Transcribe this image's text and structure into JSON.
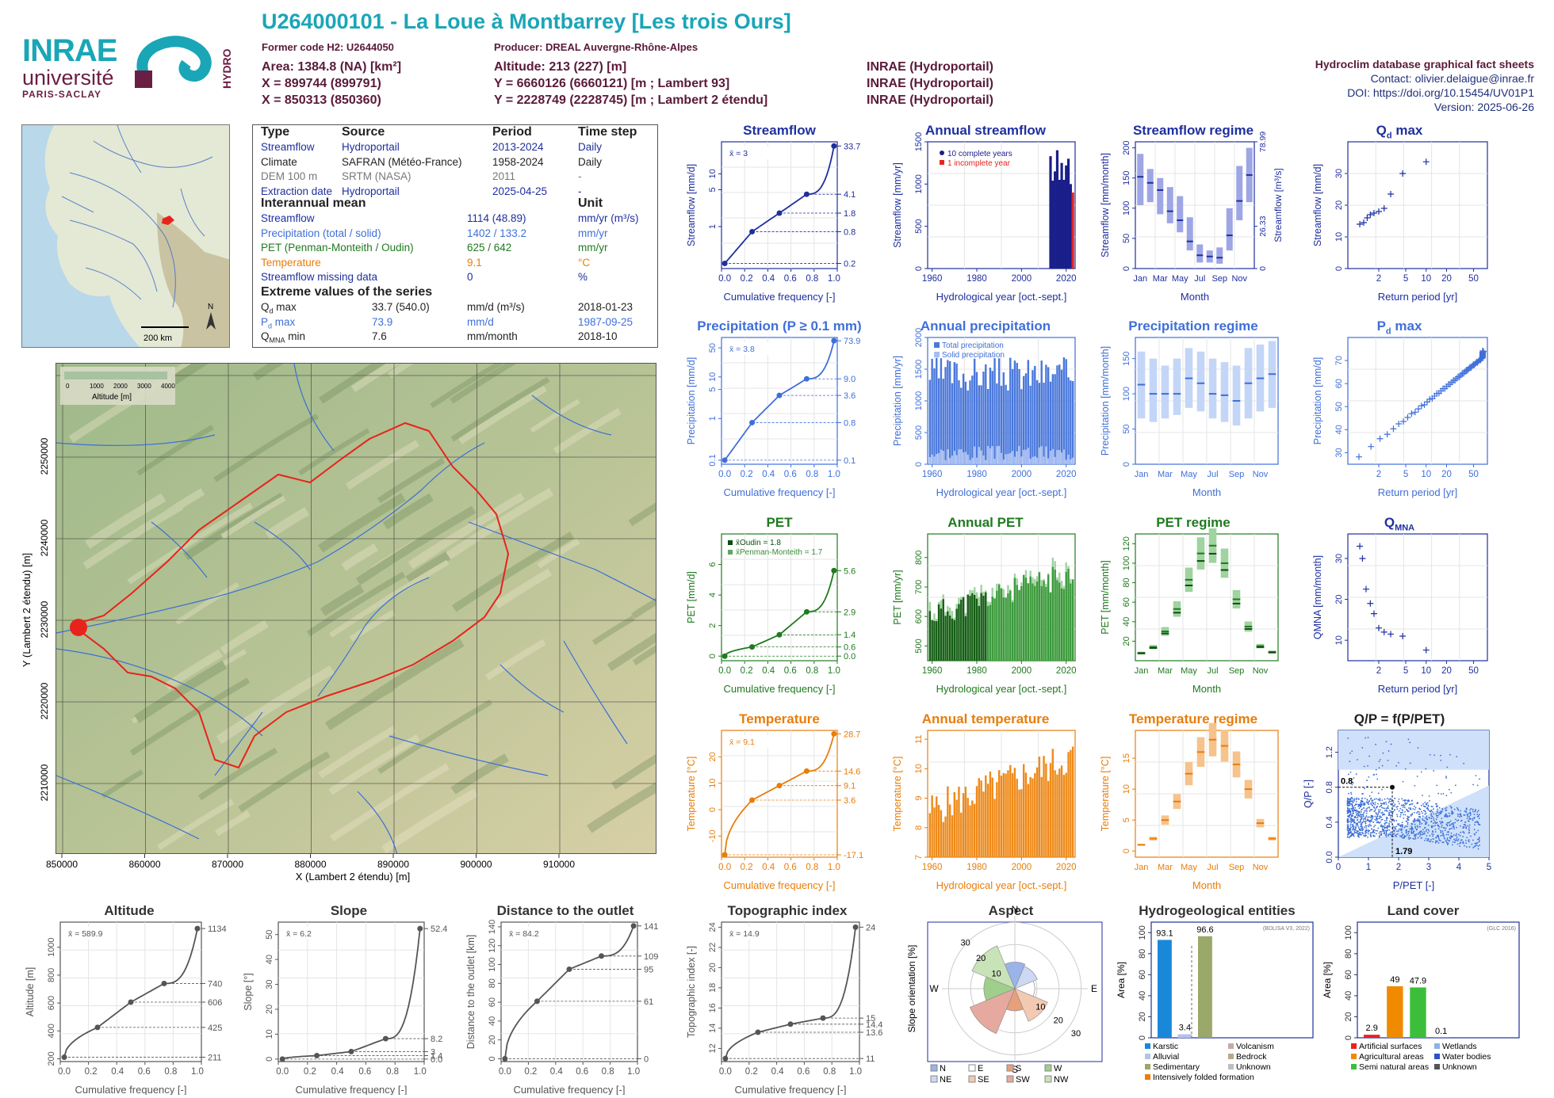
{
  "header": {
    "logo_inrae": "INRAE",
    "logo_univ": "université",
    "logo_paris": "PARIS-SACLAY",
    "logo_hydro": "HYDRO",
    "title": "U264000101 - La Loue à Montbarrey [Les trois Ours]",
    "former_code": "Former code H2: U2644050",
    "producer": "Producer: DREAL Auvergne-Rhône-Alpes",
    "area": "Area: 1384.8 (NA) [km²]",
    "x1": "X = 899744 (899791)",
    "x2": "X = 850313 (850360)",
    "altitude": "Altitude: 213 (227) [m]",
    "y1": "Y = 6660126 (6660121) [m ; Lambert 93]",
    "y2": "Y = 2228749 (2228745) [m ; Lambert 2 étendu]",
    "src1": "INRAE (Hydroportail)",
    "src2": "INRAE (Hydroportail)",
    "src3": "INRAE (Hydroportail)",
    "db": "Hydroclim database graphical fact sheets",
    "contact": "Contact: olivier.delaigue@inrae.fr",
    "doi": "DOI: https://doi.org/10.15454/UV01P1",
    "version": "Version: 2025-06-26"
  },
  "colors": {
    "streamflow": "#1f2f9e",
    "precip": "#3f6fd9",
    "pet": "#1f7a1f",
    "temp": "#e87d0a",
    "teal": "#1aa6b7",
    "catchment": "#e8231c"
  },
  "minimap": {
    "scale": "200 km",
    "north": "N"
  },
  "info": {
    "h_type": "Type",
    "h_source": "Source",
    "h_period": "Period",
    "h_timestep": "Time step",
    "rows": [
      {
        "type": "Streamflow",
        "source": "Hydroportail",
        "period": "2013-2024",
        "ts": "Daily"
      },
      {
        "type": "Climate",
        "source": "SAFRAN (Météo-France)",
        "period": "1958-2024",
        "ts": "Daily"
      },
      {
        "type": "DEM 100 m",
        "source": "SRTM (NASA)",
        "period": "2011",
        "ts": "-"
      },
      {
        "type": "Extraction date",
        "source": "Hydroportail",
        "period": "2025-04-25",
        "ts": "-"
      }
    ],
    "h_mean": "Interannual mean",
    "h_unit": "Unit",
    "means": [
      {
        "label": "Streamflow",
        "value": "1114 (48.89)",
        "unit": "mm/yr (m³/s)"
      },
      {
        "label": "Precipitation (total / solid)",
        "value": "1402 / 133.2",
        "unit": "mm/yr"
      },
      {
        "label": "PET (Penman-Monteith / Oudin)",
        "value": "625 / 642",
        "unit": "mm/yr"
      },
      {
        "label": "Temperature",
        "value": "9.1",
        "unit": "°C"
      },
      {
        "label": "Streamflow missing data",
        "value": "0",
        "unit": "%"
      }
    ],
    "h_extreme": "Extreme values of the series",
    "extremes": [
      {
        "label": "Q",
        "sub": "d",
        "suffix": " max",
        "value": "33.7 (540.0)",
        "unit": "mm/d (m³/s)",
        "date": "2018-01-23"
      },
      {
        "label": "P",
        "sub": "d",
        "suffix": " max",
        "value": "73.9",
        "unit": "mm/d",
        "date": "1987-09-25"
      },
      {
        "label": "Q",
        "sub": "MNA",
        "suffix": " min",
        "value": "7.6",
        "unit": "mm/month",
        "date": "2018-10"
      }
    ]
  },
  "bigmap": {
    "legend_title": "Altitude [m]",
    "legend_ticks": [
      "0",
      "1000",
      "2000",
      "3000",
      "4000"
    ],
    "xlabel": "X (Lambert 2 étendu) [m]",
    "ylabel": "Y (Lambert 2 étendu) [m]",
    "xticks": [
      "850000",
      "860000",
      "870000",
      "880000",
      "890000",
      "900000",
      "910000"
    ],
    "yticks": [
      "2210000",
      "2220000",
      "2230000",
      "2240000",
      "2250000"
    ]
  },
  "chart_data": [
    {
      "id": "streamflow_fdc",
      "type": "line",
      "title": "Streamflow",
      "ylabel": "Streamflow [mm/d]",
      "xlabel": "Cumulative frequency [-]",
      "mean_label": "x̄ = 3",
      "y_log": true,
      "x": [
        0,
        0.25,
        0.5,
        0.75,
        1
      ],
      "y": [
        0.2,
        0.8,
        1.8,
        4.1,
        33.7
      ],
      "right_ticks": [
        "33.7",
        "4.1",
        "1.8",
        "0.8",
        "0.2"
      ],
      "yticks": [
        "1",
        "5",
        "10"
      ]
    },
    {
      "id": "annual_streamflow",
      "type": "bar",
      "title": "Annual streamflow",
      "ylabel": "Streamflow [mm/yr]",
      "xlabel": "Hydrological year [oct.-sept.]",
      "legend": [
        "10 complete years",
        "1 incomplete year"
      ],
      "xlim": [
        1958,
        2024
      ],
      "ylim": [
        0,
        1500
      ],
      "yticks": [
        "0",
        "500",
        "1000",
        "1500"
      ],
      "xticks": [
        "1960",
        "1980",
        "2000",
        "2020"
      ],
      "x": [
        2013,
        2014,
        2015,
        2016,
        2017,
        2018,
        2019,
        2020,
        2021,
        2022,
        2023
      ],
      "values": [
        1330,
        1040,
        1150,
        1400,
        1050,
        1250,
        1050,
        1220,
        1300,
        1000,
        900
      ],
      "incomplete_index": 10
    },
    {
      "id": "streamflow_regime",
      "type": "box",
      "title": "Streamflow regime",
      "ylabel": "Streamflow [mm/month]",
      "xlabel": "Month",
      "right_label": "Streamflow [m³/s]",
      "ylim": [
        0,
        210
      ],
      "yticks": [
        "0",
        "50",
        "100",
        "150",
        "200"
      ],
      "right_ticks": [
        "78.99",
        "26.33",
        "0"
      ],
      "categories": [
        "Jan",
        "Feb",
        "Mar",
        "Apr",
        "May",
        "Jun",
        "Jul",
        "Aug",
        "Sep",
        "Oct",
        "Nov",
        "Dec"
      ],
      "xticks": [
        "Jan",
        "Mar",
        "May",
        "Jul",
        "Sep",
        "Nov"
      ],
      "median": [
        152,
        142,
        130,
        95,
        80,
        45,
        22,
        20,
        18,
        55,
        112,
        155
      ],
      "q1": [
        105,
        110,
        90,
        75,
        60,
        30,
        10,
        10,
        8,
        30,
        80,
        110
      ],
      "q3": [
        190,
        165,
        150,
        135,
        120,
        85,
        40,
        30,
        35,
        100,
        170,
        200
      ]
    },
    {
      "id": "qd_max",
      "type": "scatter",
      "title": "Qd max",
      "ylabel": "Streamflow [mm/d]",
      "xlabel": "Return period [yr]",
      "xticks": [
        "2",
        "5",
        "10",
        "20",
        "50"
      ],
      "yticks": [
        "0",
        "10",
        "20",
        "30"
      ],
      "ylim": [
        0,
        40
      ],
      "x": [
        1.05,
        1.2,
        1.35,
        1.5,
        1.7,
        2.0,
        2.4,
        3.0,
        4.5,
        10
      ],
      "y": [
        14,
        14.5,
        16,
        17,
        17.5,
        18,
        19,
        23.5,
        30,
        33.7
      ]
    },
    {
      "id": "precip_fdc",
      "type": "line",
      "title": "Precipitation (P ≥ 0.1 mm)",
      "ylabel": "Precipitation [mm/d]",
      "xlabel": "Cumulative frequency [-]",
      "mean_label": "x̄ = 3.8",
      "y_log": true,
      "x": [
        0,
        0.25,
        0.5,
        0.75,
        1
      ],
      "y": [
        0.1,
        0.8,
        3.6,
        9.0,
        73.9
      ],
      "right_ticks": [
        "73.9",
        "9.0",
        "3.6",
        "0.8",
        "0.1"
      ],
      "yticks": [
        "0.1",
        "1",
        "5",
        "10",
        "50"
      ]
    },
    {
      "id": "annual_precip",
      "type": "bar",
      "title": "Annual precipitation",
      "ylabel": "Precipitation [mm/yr]",
      "xlabel": "Hydrological year [oct.-sept.]",
      "legend": [
        "Total precipitation",
        "Solid precipitation"
      ],
      "ylim": [
        0,
        2000
      ],
      "yticks": [
        "0",
        "500",
        "1000",
        "1500",
        "2000"
      ],
      "xticks": [
        "1960",
        "1980",
        "2000",
        "2020"
      ],
      "xlim": [
        1958,
        2024
      ]
    },
    {
      "id": "precip_regime",
      "type": "box",
      "title": "Precipitation regime",
      "ylabel": "Precipitation [mm/month]",
      "xlabel": "Month",
      "ylim": [
        0,
        180
      ],
      "yticks": [
        "0",
        "50",
        "100",
        "150"
      ],
      "categories": [
        "Jan",
        "Feb",
        "Mar",
        "Apr",
        "May",
        "Jun",
        "Jul",
        "Aug",
        "Sep",
        "Oct",
        "Nov",
        "Dec"
      ],
      "xticks": [
        "Jan",
        "Mar",
        "May",
        "Jul",
        "Sep",
        "Nov"
      ],
      "median": [
        113,
        100,
        100,
        100,
        122,
        115,
        100,
        98,
        90,
        115,
        122,
        128
      ],
      "q1": [
        65,
        60,
        65,
        70,
        80,
        75,
        65,
        60,
        55,
        65,
        75,
        80
      ],
      "q3": [
        160,
        150,
        140,
        150,
        165,
        160,
        150,
        145,
        140,
        165,
        170,
        175
      ]
    },
    {
      "id": "pd_max",
      "type": "scatter",
      "title": "Pd max",
      "ylabel": "Precipitation [mm/d]",
      "xlabel": "Return period [yr]",
      "xticks": [
        "2",
        "5",
        "10",
        "20",
        "50"
      ],
      "yticks": [
        "30",
        "40",
        "50",
        "60",
        "70"
      ],
      "ylim": [
        25,
        80
      ]
    },
    {
      "id": "pet_fdc",
      "type": "line",
      "title": "PET",
      "ylabel": "PET [mm/d]",
      "xlabel": "Cumulative frequency [-]",
      "legend": [
        "x̄Oudin = 1.8",
        "x̄Penman-Monteith = 1.7"
      ],
      "x": [
        0,
        0.25,
        0.5,
        0.75,
        1
      ],
      "y": [
        0.0,
        0.6,
        1.4,
        2.9,
        5.6
      ],
      "right_ticks": [
        "5.6",
        "2.9",
        "1.4",
        "0.0"
      ],
      "yticks": [
        "0",
        "2",
        "4",
        "6"
      ],
      "ylim": [
        -0.3,
        8
      ]
    },
    {
      "id": "annual_pet",
      "type": "bar",
      "title": "Annual PET",
      "ylabel": "PET [mm/yr]",
      "xlabel": "Hydrological year [oct.-sept.]",
      "ylim": [
        450,
        880
      ],
      "yticks": [
        "500",
        "600",
        "700",
        "800"
      ],
      "xticks": [
        "1960",
        "1980",
        "2000",
        "2020"
      ],
      "xlim": [
        1958,
        2024
      ]
    },
    {
      "id": "pet_regime",
      "type": "box",
      "title": "PET regime",
      "ylabel": "PET [mm/month]",
      "xlabel": "Month",
      "ylim": [
        0,
        130
      ],
      "yticks": [
        "20",
        "40",
        "60",
        "80",
        "100",
        "120"
      ],
      "categories": [
        "Jan",
        "Feb",
        "Mar",
        "Apr",
        "May",
        "Jun",
        "Jul",
        "Aug",
        "Sep",
        "Oct",
        "Nov",
        "Dec"
      ],
      "xticks": [
        "Jan",
        "Mar",
        "May",
        "Jul",
        "Sep",
        "Nov"
      ],
      "median": [
        8,
        14,
        30,
        53,
        83,
        110,
        118,
        100,
        63,
        35,
        15,
        9
      ]
    },
    {
      "id": "qmna",
      "type": "scatter",
      "title": "QMNA",
      "ylabel": "QMNA [mm/month]",
      "xlabel": "Return period [yr]",
      "xticks": [
        "2",
        "5",
        "10",
        "20",
        "50"
      ],
      "yticks": [
        "10",
        "20",
        "30"
      ],
      "ylim": [
        5,
        36
      ],
      "x": [
        1.05,
        1.15,
        1.3,
        1.5,
        1.7,
        2.0,
        2.4,
        3.0,
        4.5,
        10
      ],
      "y": [
        33,
        30,
        22.5,
        19,
        16.5,
        13,
        12,
        11.5,
        11,
        7.6
      ]
    },
    {
      "id": "temp_fdc",
      "type": "line",
      "title": "Temperature",
      "ylabel": "Temperature [°C]",
      "xlabel": "Cumulative frequency [-]",
      "mean_label": "x̄ = 9.1",
      "x": [
        0,
        0.25,
        0.5,
        0.75,
        1
      ],
      "y": [
        -17.1,
        3.6,
        9.1,
        14.6,
        28.7
      ],
      "right_ticks": [
        "28.7",
        "14.6",
        "9.1",
        "3.6",
        "-17.1"
      ],
      "yticks": [
        "-10",
        "0",
        "10",
        "20"
      ],
      "ylim": [
        -18,
        30
      ]
    },
    {
      "id": "annual_temp",
      "type": "bar",
      "title": "Annual temperature",
      "ylabel": "Temperature [°C]",
      "xlabel": "Hydrological year [oct.-sept.]",
      "ylim": [
        7,
        11.3
      ],
      "yticks": [
        "7",
        "8",
        "9",
        "10",
        "11"
      ],
      "xticks": [
        "1960",
        "1980",
        "2000",
        "2020"
      ],
      "xlim": [
        1958,
        2024
      ]
    },
    {
      "id": "temp_regime",
      "type": "box",
      "title": "Temperature regime",
      "ylabel": "Temperature [°C]",
      "xlabel": "Month",
      "ylim": [
        -1,
        19.5
      ],
      "yticks": [
        "0",
        "5",
        "10",
        "15"
      ],
      "categories": [
        "Jan",
        "Feb",
        "Mar",
        "Apr",
        "May",
        "Jun",
        "Jul",
        "Aug",
        "Sep",
        "Oct",
        "Nov",
        "Dec"
      ],
      "xticks": [
        "Jan",
        "Mar",
        "May",
        "Jul",
        "Sep",
        "Nov"
      ],
      "median": [
        1,
        2,
        5,
        8,
        12.5,
        16,
        18,
        17,
        14,
        10,
        4.5,
        2
      ]
    },
    {
      "id": "qp_ppet",
      "type": "scatter",
      "title": "Q/P = f(P/PET)",
      "ylabel": "Q/P [-]",
      "xlabel": "P/PET [-]",
      "xlim": [
        0,
        5
      ],
      "ylim": [
        0,
        1.45
      ],
      "xticks": [
        "0",
        "1",
        "2",
        "3",
        "4",
        "5"
      ],
      "yticks": [
        "0.0",
        "0.4",
        "0.8",
        "1.2"
      ],
      "point_labels": [
        "0.8",
        "1.79"
      ],
      "point": [
        1.79,
        0.8
      ]
    },
    {
      "id": "altitude",
      "type": "line",
      "title": "Altitude",
      "ylabel": "Altitude [m]",
      "xlabel": "Cumulative frequency [-]",
      "mean_label": "x̄ = 589.9",
      "x": [
        0,
        0.25,
        0.5,
        0.75,
        1
      ],
      "y": [
        211,
        425,
        606,
        740,
        1134
      ],
      "right_ticks": [
        "1134",
        "740",
        "606",
        "425",
        "211"
      ],
      "yticks": [
        "200",
        "400",
        "600",
        "800",
        "1000"
      ],
      "ylim": [
        180,
        1180
      ]
    },
    {
      "id": "slope",
      "type": "line",
      "title": "Slope",
      "ylabel": "Slope [°]",
      "xlabel": "Cumulative frequency [-]",
      "mean_label": "x̄ = 6.2",
      "x": [
        0,
        0.25,
        0.5,
        0.75,
        1
      ],
      "y": [
        0.0,
        1.4,
        3.0,
        8.2,
        52.4
      ],
      "right_ticks": [
        "52.4",
        "8.2",
        "0.0"
      ],
      "yticks": [
        "0",
        "10",
        "20",
        "30",
        "40",
        "50"
      ],
      "ylim": [
        -1,
        55
      ]
    },
    {
      "id": "distance",
      "type": "line",
      "title": "Distance to the outlet",
      "ylabel": "Distance to the outlet [km]",
      "xlabel": "Cumulative frequency [-]",
      "mean_label": "x̄ = 84.2",
      "x": [
        0,
        0.25,
        0.5,
        0.75,
        1
      ],
      "y": [
        0,
        61,
        95,
        109,
        141
      ],
      "right_ticks": [
        "141",
        "109",
        "95",
        "61",
        "0"
      ],
      "yticks": [
        "0",
        "20",
        "40",
        "60",
        "80",
        "100",
        "120",
        "140"
      ],
      "ylim": [
        -3,
        145
      ]
    },
    {
      "id": "topo",
      "type": "line",
      "title": "Topographic index",
      "ylabel": "Topographic index [-]",
      "xlabel": "Cumulative frequency [-]",
      "mean_label": "x̄ = 14.9",
      "x": [
        0,
        0.25,
        0.5,
        0.75,
        1
      ],
      "y": [
        11,
        13.6,
        14.4,
        15,
        24
      ],
      "right_ticks": [
        "24",
        "15",
        "14",
        "11"
      ],
      "yticks": [
        "12",
        "14",
        "16",
        "18",
        "20",
        "22",
        "24"
      ],
      "ylim": [
        10.7,
        24.5
      ]
    },
    {
      "id": "aspect",
      "type": "pie",
      "title": "Aspect",
      "ylabel": "Slope orientation [%]",
      "directions": [
        "N",
        "E",
        "S",
        "W"
      ],
      "rings": [
        "10",
        "20",
        "30"
      ],
      "legend": [
        "N",
        "E",
        "S",
        "W",
        "NE",
        "SE",
        "SW",
        "NW"
      ],
      "values": [
        12,
        9,
        10,
        14,
        11,
        16,
        22,
        21
      ]
    },
    {
      "id": "hydrogeo",
      "type": "bar",
      "title": "Hydrogeological entities",
      "ylabel": "Area [%]",
      "note": "(BDLISA V3, 2022)",
      "ylim": [
        0,
        110
      ],
      "yticks": [
        "0",
        "20",
        "40",
        "60",
        "80",
        "100"
      ],
      "categories": [
        "Karstic",
        "Alluvial",
        "Sedimentary",
        "Intensively folded formation",
        "Volcanism",
        "Bedrock",
        "Unknown"
      ],
      "values": [
        93.1,
        3.4,
        96.6,
        0,
        0,
        0,
        0
      ],
      "labels": [
        "93.1",
        "3.4",
        "96.6"
      ]
    },
    {
      "id": "landcover",
      "type": "bar",
      "title": "Land cover",
      "ylabel": "Area [%]",
      "note": "(GLC 2016)",
      "ylim": [
        0,
        110
      ],
      "yticks": [
        "0",
        "20",
        "40",
        "60",
        "80",
        "100"
      ],
      "categories": [
        "Artificial surfaces",
        "Agricultural areas",
        "Semi natural areas",
        "Wetlands",
        "Water bodies",
        "Unknown"
      ],
      "values": [
        2.9,
        49,
        47.9,
        0.1,
        0,
        0
      ],
      "labels": [
        "2.9",
        "49",
        "47.9",
        "0.1"
      ]
    }
  ]
}
